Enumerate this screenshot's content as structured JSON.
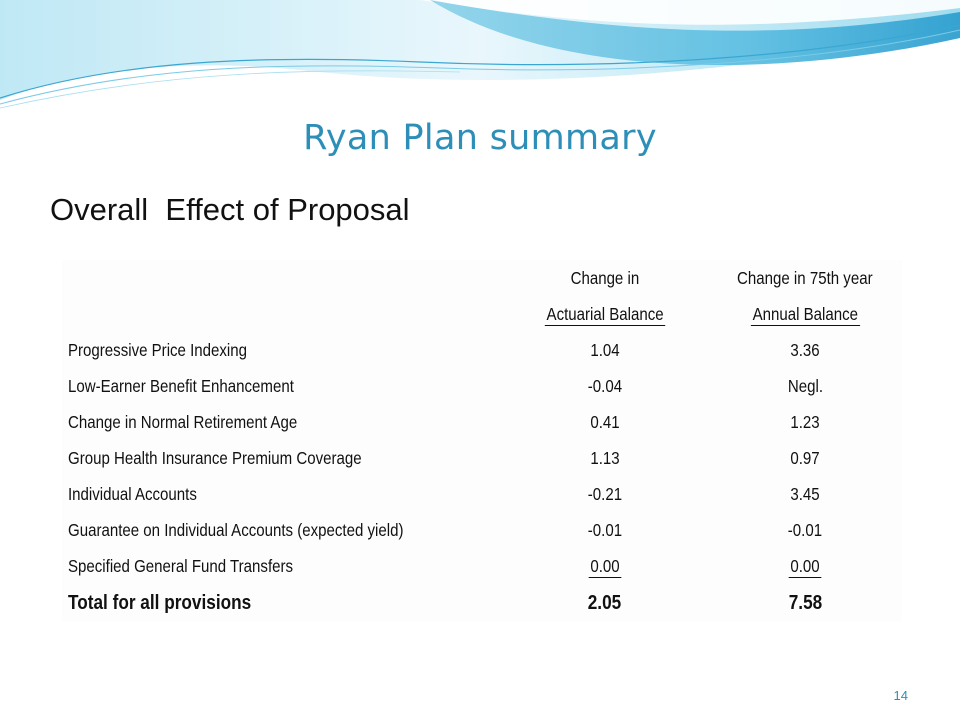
{
  "slide": {
    "title": "Ryan Plan summary",
    "subtitle": "Overall  Effect of Proposal",
    "page_number": "14"
  },
  "table": {
    "headers": {
      "col1_line1": "Change in",
      "col1_line2": "Actuarial Balance",
      "col2_line1": "Change in 75th year",
      "col2_line2": "Annual Balance"
    },
    "rows": [
      {
        "label": "Progressive Price Indexing",
        "actuarial": "1.04",
        "annual": "3.36"
      },
      {
        "label": "Low-Earner Benefit Enhancement",
        "actuarial": "-0.04",
        "annual": "Negl."
      },
      {
        "label": "Change in Normal Retirement Age",
        "actuarial": "0.41",
        "annual": "1.23"
      },
      {
        "label": "Group Health Insurance Premium Coverage",
        "actuarial": "1.13",
        "annual": "0.97"
      },
      {
        "label": "Individual Accounts",
        "actuarial": "-0.21",
        "annual": "3.45"
      },
      {
        "label": "Guarantee on Individual Accounts (expected yield)",
        "actuarial": "-0.01",
        "annual": "-0.01"
      },
      {
        "label": "Specified General Fund Transfers",
        "actuarial": "0.00",
        "annual": "0.00"
      }
    ],
    "total": {
      "label": "Total for all provisions",
      "actuarial": "2.05",
      "annual": "7.58"
    }
  },
  "colors": {
    "title": "#2d8fb8",
    "wave_light": "#d6f0f8",
    "wave_mid": "#8fd3ea",
    "wave_dark": "#3aa7d2"
  }
}
